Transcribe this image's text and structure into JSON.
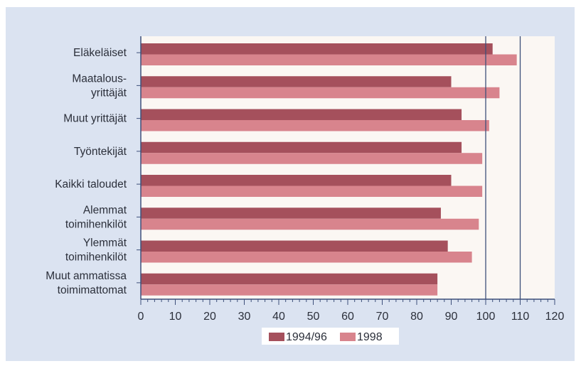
{
  "chart_data": {
    "type": "bar",
    "orientation": "horizontal",
    "categories": [
      [
        "Eläkeläiset"
      ],
      [
        "Maatalous-",
        "yrittäjät"
      ],
      [
        "Muut yrittäjät"
      ],
      [
        "Työntekijät"
      ],
      [
        "Kaikki taloudet"
      ],
      [
        "Alemmat",
        "toimihenkilöt"
      ],
      [
        "Ylemmät",
        "toimihenkilöt"
      ],
      [
        "Muut ammatissa",
        "toimimattomat"
      ]
    ],
    "series": [
      {
        "name": "1994/96",
        "color": "#a5505c",
        "values": [
          102,
          90,
          93,
          93,
          90,
          87,
          89,
          86
        ]
      },
      {
        "name": "1998",
        "color": "#d8848d",
        "values": [
          109,
          104,
          101,
          99,
          99,
          98,
          96,
          86
        ]
      }
    ],
    "xlim": [
      0,
      120
    ],
    "xticks": [
      0,
      10,
      20,
      30,
      40,
      50,
      60,
      70,
      80,
      90,
      100,
      110,
      120
    ],
    "reference_lines": [
      100,
      110
    ],
    "plot_background": "#fbf7f3",
    "panel_background": "#dbe3f1",
    "legend": "bottom-center",
    "grid": false
  }
}
